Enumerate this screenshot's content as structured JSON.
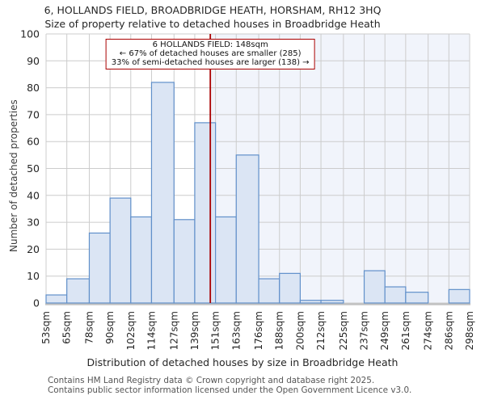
{
  "chart_data": {
    "type": "bar",
    "title": "6, HOLLANDS FIELD, BROADBRIDGE HEATH, HORSHAM, RH12 3HQ",
    "subtitle": "Size of property relative to detached houses in Broadbridge Heath",
    "xlabel": "Distribution of detached houses by size in Broadbridge Heath",
    "ylabel": "Number of detached properties",
    "categories": [
      "53sqm",
      "65sqm",
      "78sqm",
      "90sqm",
      "102sqm",
      "114sqm",
      "127sqm",
      "139sqm",
      "151sqm",
      "163sqm",
      "176sqm",
      "188sqm",
      "200sqm",
      "212sqm",
      "225sqm",
      "237sqm",
      "249sqm",
      "261sqm",
      "274sqm",
      "286sqm",
      "298sqm"
    ],
    "bin_edges_sqm": [
      53,
      65,
      78,
      90,
      102,
      114,
      127,
      139,
      151,
      163,
      176,
      188,
      200,
      212,
      225,
      237,
      249,
      261,
      274,
      286,
      298
    ],
    "values": [
      3,
      9,
      26,
      39,
      32,
      82,
      31,
      67,
      32,
      55,
      9,
      11,
      1,
      1,
      0,
      12,
      6,
      4,
      0,
      5
    ],
    "ylim": [
      0,
      100
    ],
    "ytick_step": 10,
    "x_range": [
      53,
      298
    ],
    "grid": true,
    "legend": "none",
    "marker": {
      "value_sqm": 148,
      "annotation": [
        "6 HOLLANDS FIELD: 148sqm",
        "← 67% of detached houses are smaller (285)",
        "33% of semi-detached houses are larger (138) →"
      ]
    },
    "colors": {
      "bar_fill": "#dbe5f4",
      "bar_stroke": "#6190ca",
      "grid": "#cccccc",
      "axis": "#c2c2c2",
      "marker_line": "#aa0000",
      "shade": "#f1f4fb",
      "tick_text": "#262626"
    }
  },
  "footer": {
    "line1": "Contains HM Land Registry data © Crown copyright and database right 2025.",
    "line2": "Contains public sector information licensed under the Open Government Licence v3.0."
  }
}
